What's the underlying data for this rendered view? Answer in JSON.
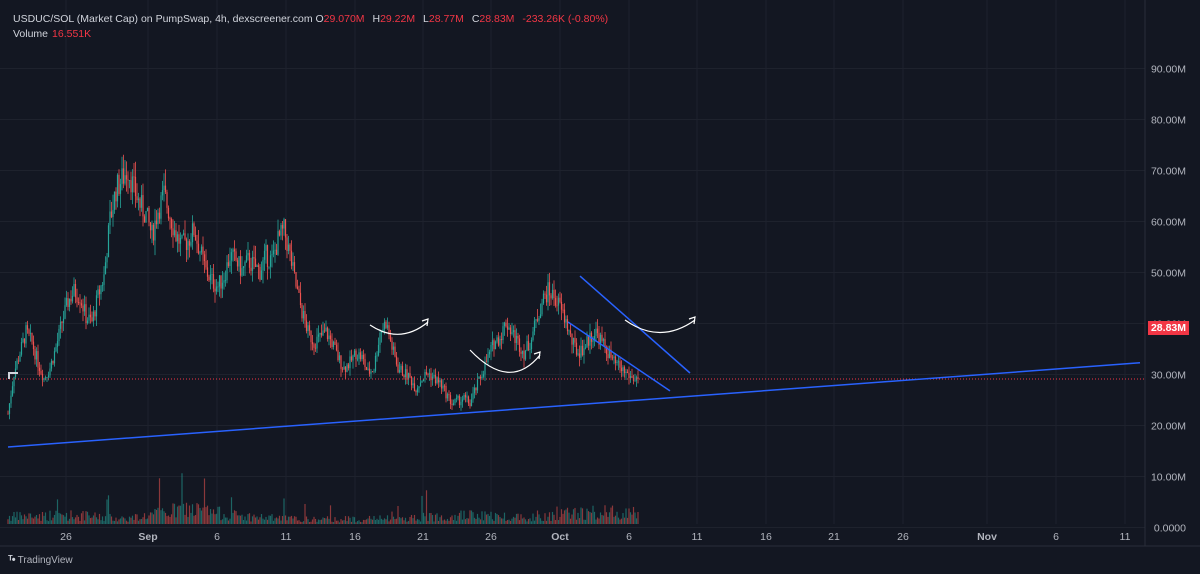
{
  "legend": {
    "title": "USDUC/SOL (Market Cap) on PumpSwap, 4h, dexscreener.com",
    "o_key": "O",
    "o_val": "29.070M",
    "h_key": "H",
    "h_val": "29.22M",
    "l_key": "L",
    "l_val": "28.77M",
    "c_key": "C",
    "c_val": "28.83M",
    "change": "-233.26K (-0.80%)",
    "volume_label": "Volume",
    "volume_val": "16.551K"
  },
  "price_tag": "28.83M",
  "branding": "TradingView",
  "colors": {
    "background": "#131722",
    "up": "#26a69a",
    "down": "#ef5350",
    "trendline": "#2962ff",
    "last_price": "#f23645"
  },
  "chart_data": {
    "type": "candlestick",
    "timeframe": "4h",
    "x_ticks": [
      "26",
      "Sep",
      "6",
      "11",
      "16",
      "21",
      "26",
      "Oct",
      "6",
      "11",
      "16",
      "21",
      "26",
      "Nov",
      "6",
      "11"
    ],
    "y_ticks": [
      "90.00M",
      "80.00M",
      "70.00M",
      "60.00M",
      "50.00M",
      "40.00M",
      "30.00M",
      "20.00M",
      "10.00M",
      "0.0000"
    ],
    "ylim": [
      0,
      90
    ],
    "y_unit": "M",
    "last_price": 28.83,
    "close_path": [
      [
        0,
        22
      ],
      [
        4,
        30
      ],
      [
        8,
        34
      ],
      [
        12,
        38
      ],
      [
        16,
        36
      ],
      [
        20,
        32
      ],
      [
        24,
        29
      ],
      [
        28,
        31
      ],
      [
        32,
        35
      ],
      [
        36,
        40
      ],
      [
        40,
        44
      ],
      [
        44,
        46
      ],
      [
        48,
        45
      ],
      [
        52,
        41
      ],
      [
        56,
        40
      ],
      [
        60,
        45
      ],
      [
        64,
        49
      ],
      [
        68,
        60
      ],
      [
        72,
        66
      ],
      [
        76,
        68
      ],
      [
        80,
        70
      ],
      [
        84,
        66
      ],
      [
        88,
        63
      ],
      [
        92,
        61
      ],
      [
        96,
        57
      ],
      [
        100,
        62
      ],
      [
        104,
        65
      ],
      [
        108,
        61
      ],
      [
        112,
        57
      ],
      [
        116,
        55
      ],
      [
        120,
        56
      ],
      [
        124,
        58
      ],
      [
        128,
        54
      ],
      [
        132,
        50
      ],
      [
        136,
        48
      ],
      [
        140,
        47
      ],
      [
        144,
        49
      ],
      [
        148,
        53
      ],
      [
        152,
        52
      ],
      [
        156,
        50
      ],
      [
        160,
        52
      ],
      [
        164,
        51
      ],
      [
        168,
        50
      ],
      [
        172,
        53
      ],
      [
        176,
        52
      ],
      [
        180,
        56
      ],
      [
        184,
        58
      ],
      [
        188,
        53
      ],
      [
        192,
        47
      ],
      [
        196,
        42
      ],
      [
        200,
        38
      ],
      [
        204,
        36
      ],
      [
        208,
        37
      ],
      [
        212,
        38
      ],
      [
        216,
        36
      ],
      [
        220,
        33
      ],
      [
        224,
        31
      ],
      [
        228,
        32
      ],
      [
        232,
        34
      ],
      [
        236,
        33
      ],
      [
        240,
        30
      ],
      [
        244,
        31
      ],
      [
        248,
        38
      ],
      [
        252,
        40
      ],
      [
        256,
        35
      ],
      [
        260,
        31
      ],
      [
        264,
        30
      ],
      [
        268,
        29
      ],
      [
        272,
        27
      ],
      [
        276,
        29
      ],
      [
        280,
        30
      ],
      [
        284,
        29
      ],
      [
        288,
        28
      ],
      [
        292,
        26
      ],
      [
        296,
        24
      ],
      [
        300,
        24.5
      ],
      [
        304,
        25
      ],
      [
        308,
        24
      ],
      [
        312,
        27
      ],
      [
        316,
        30
      ],
      [
        320,
        33
      ],
      [
        324,
        36
      ],
      [
        328,
        37
      ],
      [
        332,
        40
      ],
      [
        336,
        38
      ],
      [
        340,
        36
      ],
      [
        344,
        34
      ],
      [
        348,
        36
      ],
      [
        352,
        40
      ],
      [
        356,
        44
      ],
      [
        360,
        46
      ],
      [
        364,
        45
      ],
      [
        368,
        43
      ],
      [
        372,
        40
      ],
      [
        376,
        36
      ],
      [
        380,
        34
      ],
      [
        384,
        35
      ],
      [
        388,
        37
      ],
      [
        392,
        38
      ],
      [
        396,
        36
      ],
      [
        400,
        34
      ],
      [
        404,
        32
      ],
      [
        408,
        31
      ],
      [
        412,
        30
      ],
      [
        416,
        29
      ],
      [
        420,
        28.83
      ]
    ],
    "volume_path": [
      [
        0,
        8
      ],
      [
        40,
        10
      ],
      [
        80,
        6
      ],
      [
        120,
        17
      ],
      [
        140,
        12
      ],
      [
        160,
        8
      ],
      [
        200,
        5
      ],
      [
        260,
        6
      ],
      [
        300,
        10
      ],
      [
        340,
        8
      ],
      [
        380,
        12
      ],
      [
        420,
        14
      ]
    ],
    "trendline_support": {
      "x": [
        0,
        1140
      ],
      "y": [
        15.5,
        32
      ]
    },
    "channel_upper": {
      "x": [
        580,
        690
      ],
      "y": [
        49,
        30
      ]
    },
    "channel_lower": {
      "x": [
        568,
        670
      ],
      "y": [
        40,
        26.5
      ]
    }
  }
}
